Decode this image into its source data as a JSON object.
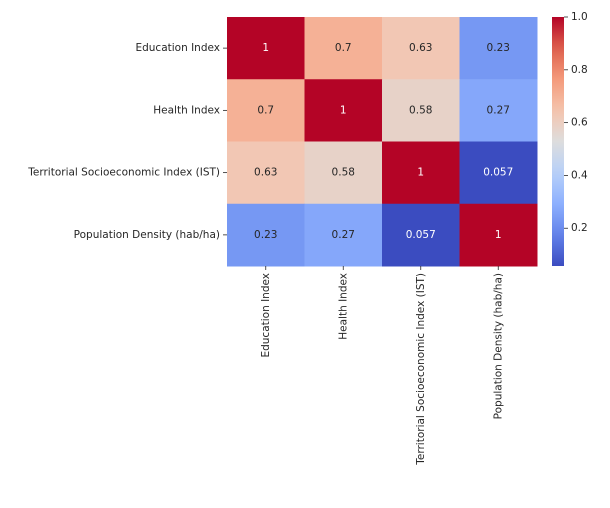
{
  "chart_data": {
    "type": "heatmap",
    "title": "",
    "xlabel": "",
    "ylabel": "",
    "rows": [
      "Education Index",
      "Health Index",
      "Territorial Socioeconomic Index (IST)",
      "Population Density (hab/ha)"
    ],
    "columns": [
      "Education Index",
      "Health Index",
      "Territorial Socioeconomic Index (IST)",
      "Population Density (hab/ha)"
    ],
    "values": [
      [
        1,
        0.7,
        0.63,
        0.23
      ],
      [
        0.7,
        1,
        0.58,
        0.27
      ],
      [
        0.63,
        0.58,
        1,
        0.057
      ],
      [
        0.23,
        0.27,
        0.057,
        1
      ]
    ],
    "cell_labels": [
      [
        "1",
        "0.7",
        "0.63",
        "0.23"
      ],
      [
        "0.7",
        "1",
        "0.58",
        "0.27"
      ],
      [
        "0.63",
        "0.58",
        "1",
        "0.057"
      ],
      [
        "0.23",
        "0.27",
        "0.057",
        "1"
      ]
    ],
    "colormap": "coolwarm",
    "colorbar": {
      "range": [
        0.057,
        1.0
      ],
      "ticks": [
        0.2,
        0.4,
        0.6,
        0.8,
        1.0
      ],
      "tick_labels": [
        "0.2",
        "0.4",
        "0.6",
        "0.8",
        "1.0"
      ]
    },
    "grid": false,
    "legend": "none"
  }
}
